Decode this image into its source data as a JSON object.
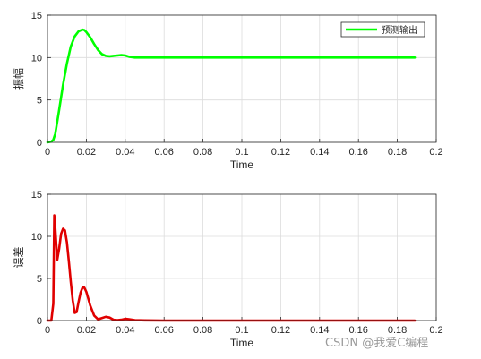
{
  "chart_data": [
    {
      "type": "line",
      "xlabel": "Time",
      "ylabel": "振幅",
      "xlim": [
        0,
        0.2
      ],
      "ylim": [
        0,
        15
      ],
      "xticks": [
        "0",
        "0.02",
        "0.04",
        "0.06",
        "0.08",
        "0.1",
        "0.12",
        "0.14",
        "0.16",
        "0.18",
        "0.2"
      ],
      "yticks": [
        "0",
        "5",
        "10",
        "15"
      ],
      "grid": true,
      "legend_position": "top-right",
      "series": [
        {
          "name": "预测输出",
          "color": "#00ff00",
          "x": [
            0,
            0.002,
            0.003,
            0.004,
            0.006,
            0.008,
            0.01,
            0.012,
            0.014,
            0.016,
            0.018,
            0.019,
            0.02,
            0.022,
            0.024,
            0.026,
            0.028,
            0.03,
            0.032,
            0.034,
            0.036,
            0.038,
            0.04,
            0.042,
            0.045,
            0.05,
            0.06,
            0.08,
            0.1,
            0.12,
            0.14,
            0.16,
            0.18,
            0.189
          ],
          "y": [
            0,
            0.1,
            0.3,
            1.0,
            3.8,
            6.8,
            9.3,
            11.3,
            12.5,
            13.1,
            13.3,
            13.25,
            13.0,
            12.4,
            11.6,
            10.9,
            10.4,
            10.2,
            10.15,
            10.2,
            10.25,
            10.3,
            10.25,
            10.1,
            10.0,
            10.0,
            10.0,
            10.0,
            10.0,
            10.0,
            10.0,
            10.0,
            10.0,
            10.0
          ]
        }
      ]
    },
    {
      "type": "line",
      "xlabel": "Time",
      "ylabel": "误差",
      "xlim": [
        0,
        0.2
      ],
      "ylim": [
        0,
        15
      ],
      "xticks": [
        "0",
        "0.02",
        "0.04",
        "0.06",
        "0.08",
        "0.1",
        "0.12",
        "0.14",
        "0.16",
        "0.18",
        "0.2"
      ],
      "yticks": [
        "0",
        "5",
        "10",
        "15"
      ],
      "grid": true,
      "series": [
        {
          "color": "#e00000",
          "x": [
            0,
            0.002,
            0.003,
            0.0035,
            0.004,
            0.005,
            0.006,
            0.007,
            0.008,
            0.009,
            0.01,
            0.011,
            0.012,
            0.013,
            0.014,
            0.015,
            0.016,
            0.017,
            0.018,
            0.019,
            0.02,
            0.021,
            0.022,
            0.024,
            0.026,
            0.028,
            0.03,
            0.032,
            0.034,
            0.036,
            0.038,
            0.04,
            0.042,
            0.045,
            0.05,
            0.06,
            0.1,
            0.15,
            0.189
          ],
          "y": [
            0,
            0,
            2,
            12.5,
            11,
            7.2,
            8.5,
            10.3,
            10.9,
            10.7,
            9.3,
            7.0,
            4.6,
            2.4,
            0.9,
            1.0,
            2.2,
            3.3,
            3.9,
            3.9,
            3.4,
            2.6,
            1.8,
            0.6,
            0.15,
            0.3,
            0.45,
            0.35,
            0.1,
            0.05,
            0.1,
            0.2,
            0.15,
            0.05,
            0.02,
            0.0,
            0.0,
            0.0,
            0.0
          ]
        }
      ]
    }
  ],
  "watermark": "CSDN @我爱C编程"
}
